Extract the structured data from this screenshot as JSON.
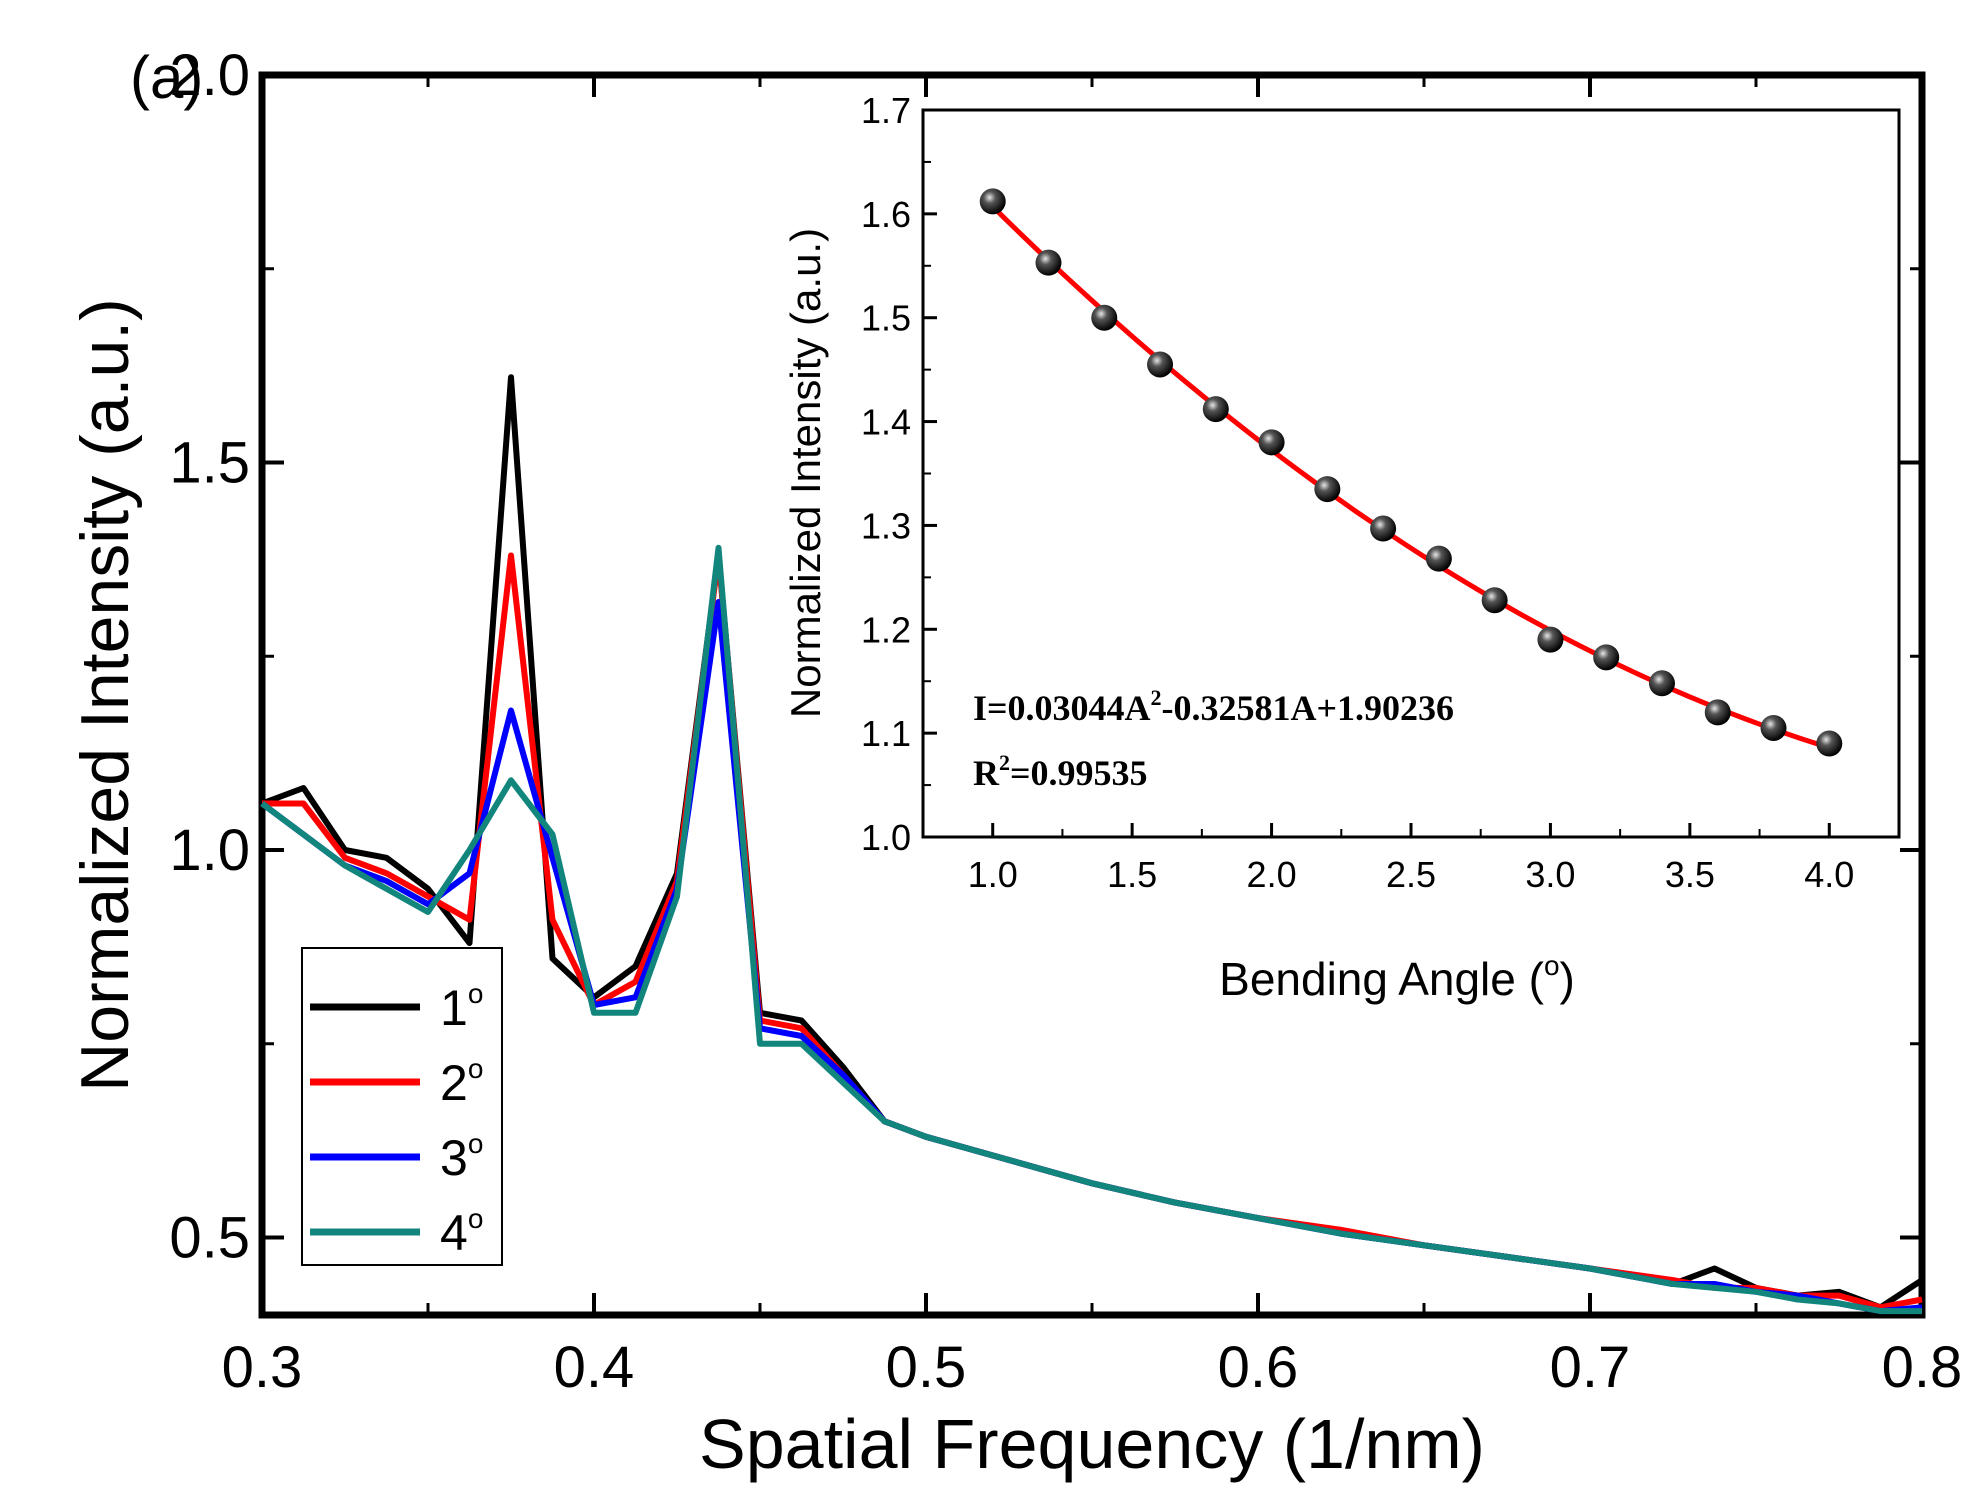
{
  "chart_data": [
    {
      "type": "line",
      "panel_label": "(a)",
      "xlabel": "Spatial Frequency (1/nm)",
      "ylabel": "Normalized Intensity (a.u.)",
      "xlim": [
        0.3,
        0.8
      ],
      "ylim": [
        0.4,
        2.0
      ],
      "xticks": [
        "0.3",
        "0.4",
        "0.5",
        "0.6",
        "0.7",
        "0.8"
      ],
      "yticks": [
        "0.5",
        "1.0",
        "1.5",
        "2.0"
      ],
      "legend_position": "bottom-left",
      "x": [
        0.3,
        0.3125,
        0.325,
        0.3375,
        0.35,
        0.3625,
        0.375,
        0.3875,
        0.4,
        0.4125,
        0.425,
        0.4375,
        0.45,
        0.4625,
        0.475,
        0.4875,
        0.5,
        0.525,
        0.55,
        0.575,
        0.6,
        0.625,
        0.65,
        0.675,
        0.7,
        0.725,
        0.7375,
        0.75,
        0.7625,
        0.775,
        0.7875,
        0.8
      ],
      "series": [
        {
          "name": "1",
          "color": "#000000",
          "values": [
            1.06,
            1.08,
            1.0,
            0.99,
            0.95,
            0.88,
            1.61,
            0.86,
            0.81,
            0.85,
            0.97,
            1.38,
            0.79,
            0.78,
            0.72,
            0.65,
            0.63,
            0.6,
            0.57,
            0.545,
            0.525,
            0.505,
            0.49,
            0.475,
            0.46,
            0.44,
            0.46,
            0.435,
            0.425,
            0.43,
            0.41,
            0.445
          ]
        },
        {
          "name": "2",
          "color": "#ff0000",
          "values": [
            1.06,
            1.06,
            0.99,
            0.97,
            0.94,
            0.91,
            1.38,
            0.91,
            0.8,
            0.83,
            0.96,
            1.38,
            0.78,
            0.77,
            0.71,
            0.65,
            0.63,
            0.6,
            0.57,
            0.545,
            0.525,
            0.51,
            0.49,
            0.475,
            0.46,
            0.445,
            0.435,
            0.435,
            0.425,
            0.425,
            0.41,
            0.42
          ]
        },
        {
          "name": "3",
          "color": "#0000ff",
          "values": [
            1.06,
            1.02,
            0.98,
            0.96,
            0.93,
            0.97,
            1.18,
            0.99,
            0.8,
            0.81,
            0.95,
            1.32,
            0.77,
            0.76,
            0.71,
            0.65,
            0.63,
            0.6,
            0.57,
            0.545,
            0.525,
            0.505,
            0.49,
            0.475,
            0.46,
            0.44,
            0.44,
            0.43,
            0.425,
            0.415,
            0.405,
            0.41
          ]
        },
        {
          "name": "4",
          "color": "#12857d",
          "values": [
            1.06,
            1.02,
            0.98,
            0.95,
            0.92,
            1.0,
            1.09,
            1.02,
            0.79,
            0.79,
            0.94,
            1.39,
            0.75,
            0.75,
            0.7,
            0.65,
            0.63,
            0.6,
            0.57,
            0.545,
            0.525,
            0.505,
            0.49,
            0.475,
            0.46,
            0.44,
            0.435,
            0.43,
            0.42,
            0.415,
            0.405,
            0.405
          ]
        }
      ]
    },
    {
      "type": "scatter",
      "inset": true,
      "xlabel": "Bending Angle (",
      "xlabel_sup": "o",
      "xlabel_end": ")",
      "ylabel": "Normalized Intensity (a.u.)",
      "xlim": [
        0.75,
        4.25
      ],
      "ylim": [
        1.0,
        1.7
      ],
      "xticks": [
        "1.0",
        "1.5",
        "2.0",
        "2.5",
        "3.0",
        "3.5",
        "4.0"
      ],
      "yticks": [
        "1.0",
        "1.1",
        "1.2",
        "1.3",
        "1.4",
        "1.5",
        "1.6",
        "1.7"
      ],
      "x": [
        1.0,
        1.2,
        1.4,
        1.6,
        1.8,
        2.0,
        2.2,
        2.4,
        2.6,
        2.8,
        3.0,
        3.2,
        3.4,
        3.6,
        3.8,
        4.0
      ],
      "values": [
        1.612,
        1.553,
        1.5,
        1.455,
        1.412,
        1.38,
        1.335,
        1.297,
        1.268,
        1.228,
        1.19,
        1.173,
        1.148,
        1.12,
        1.105,
        1.09
      ],
      "fit": {
        "type": "quadratic",
        "a": 0.03044,
        "b": -0.32581,
        "c": 1.90236,
        "color": "#ff0000"
      },
      "equation_parts": [
        "I=0.03044A",
        "2",
        "-0.32581A+1.90236"
      ],
      "r2_parts": [
        "R",
        "2",
        "=0.99535"
      ]
    }
  ]
}
